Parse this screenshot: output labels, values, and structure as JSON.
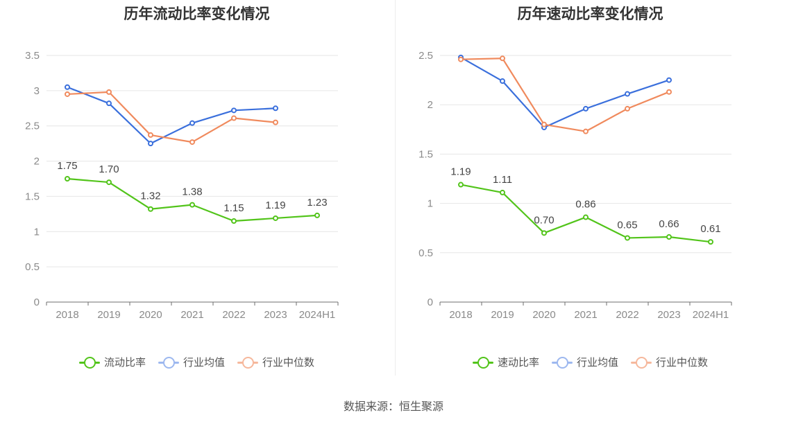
{
  "source": "数据来源：恒生聚源",
  "legend_colors": [
    "#52c41a",
    "#3a6fdc",
    "#f08a5d"
  ],
  "legend_light_colors": [
    "#52c41a",
    "#9db8ef",
    "#f6b89c"
  ],
  "chart_data": [
    {
      "type": "line",
      "title": "历年流动比率变化情况",
      "xlabel": "",
      "ylabel": "",
      "categories": [
        "2018",
        "2019",
        "2020",
        "2021",
        "2022",
        "2023",
        "2024H1"
      ],
      "ylim": [
        0,
        3.5
      ],
      "yticks": [
        "0",
        "0.5",
        "1",
        "1.5",
        "2",
        "2.5",
        "3",
        "3.5"
      ],
      "grid": true,
      "legend_position": "bottom",
      "series": [
        {
          "name": "流动比率",
          "values": [
            1.75,
            1.7,
            1.32,
            1.38,
            1.15,
            1.19,
            1.23
          ],
          "labels": [
            "1.75",
            "1.70",
            "1.32",
            "1.38",
            "1.15",
            "1.19",
            "1.23"
          ]
        },
        {
          "name": "行业均值",
          "values": [
            3.05,
            2.82,
            2.25,
            2.54,
            2.72,
            2.75,
            null
          ]
        },
        {
          "name": "行业中位数",
          "values": [
            2.95,
            2.98,
            2.37,
            2.27,
            2.61,
            2.55,
            null
          ]
        }
      ]
    },
    {
      "type": "line",
      "title": "历年速动比率变化情况",
      "xlabel": "",
      "ylabel": "",
      "categories": [
        "2018",
        "2019",
        "2020",
        "2021",
        "2022",
        "2023",
        "2024H1"
      ],
      "ylim": [
        0,
        2.5
      ],
      "yticks": [
        "0",
        "0.5",
        "1",
        "1.5",
        "2",
        "2.5"
      ],
      "grid": true,
      "legend_position": "bottom",
      "series": [
        {
          "name": "速动比率",
          "values": [
            1.19,
            1.11,
            0.7,
            0.86,
            0.65,
            0.66,
            0.61
          ],
          "labels": [
            "1.19",
            "1.11",
            "0.70",
            "0.86",
            "0.65",
            "0.66",
            "0.61"
          ]
        },
        {
          "name": "行业均值",
          "values": [
            2.48,
            2.24,
            1.77,
            1.96,
            2.11,
            2.25,
            null
          ]
        },
        {
          "name": "行业中位数",
          "values": [
            2.46,
            2.47,
            1.8,
            1.73,
            1.96,
            2.13,
            null
          ]
        }
      ]
    }
  ]
}
